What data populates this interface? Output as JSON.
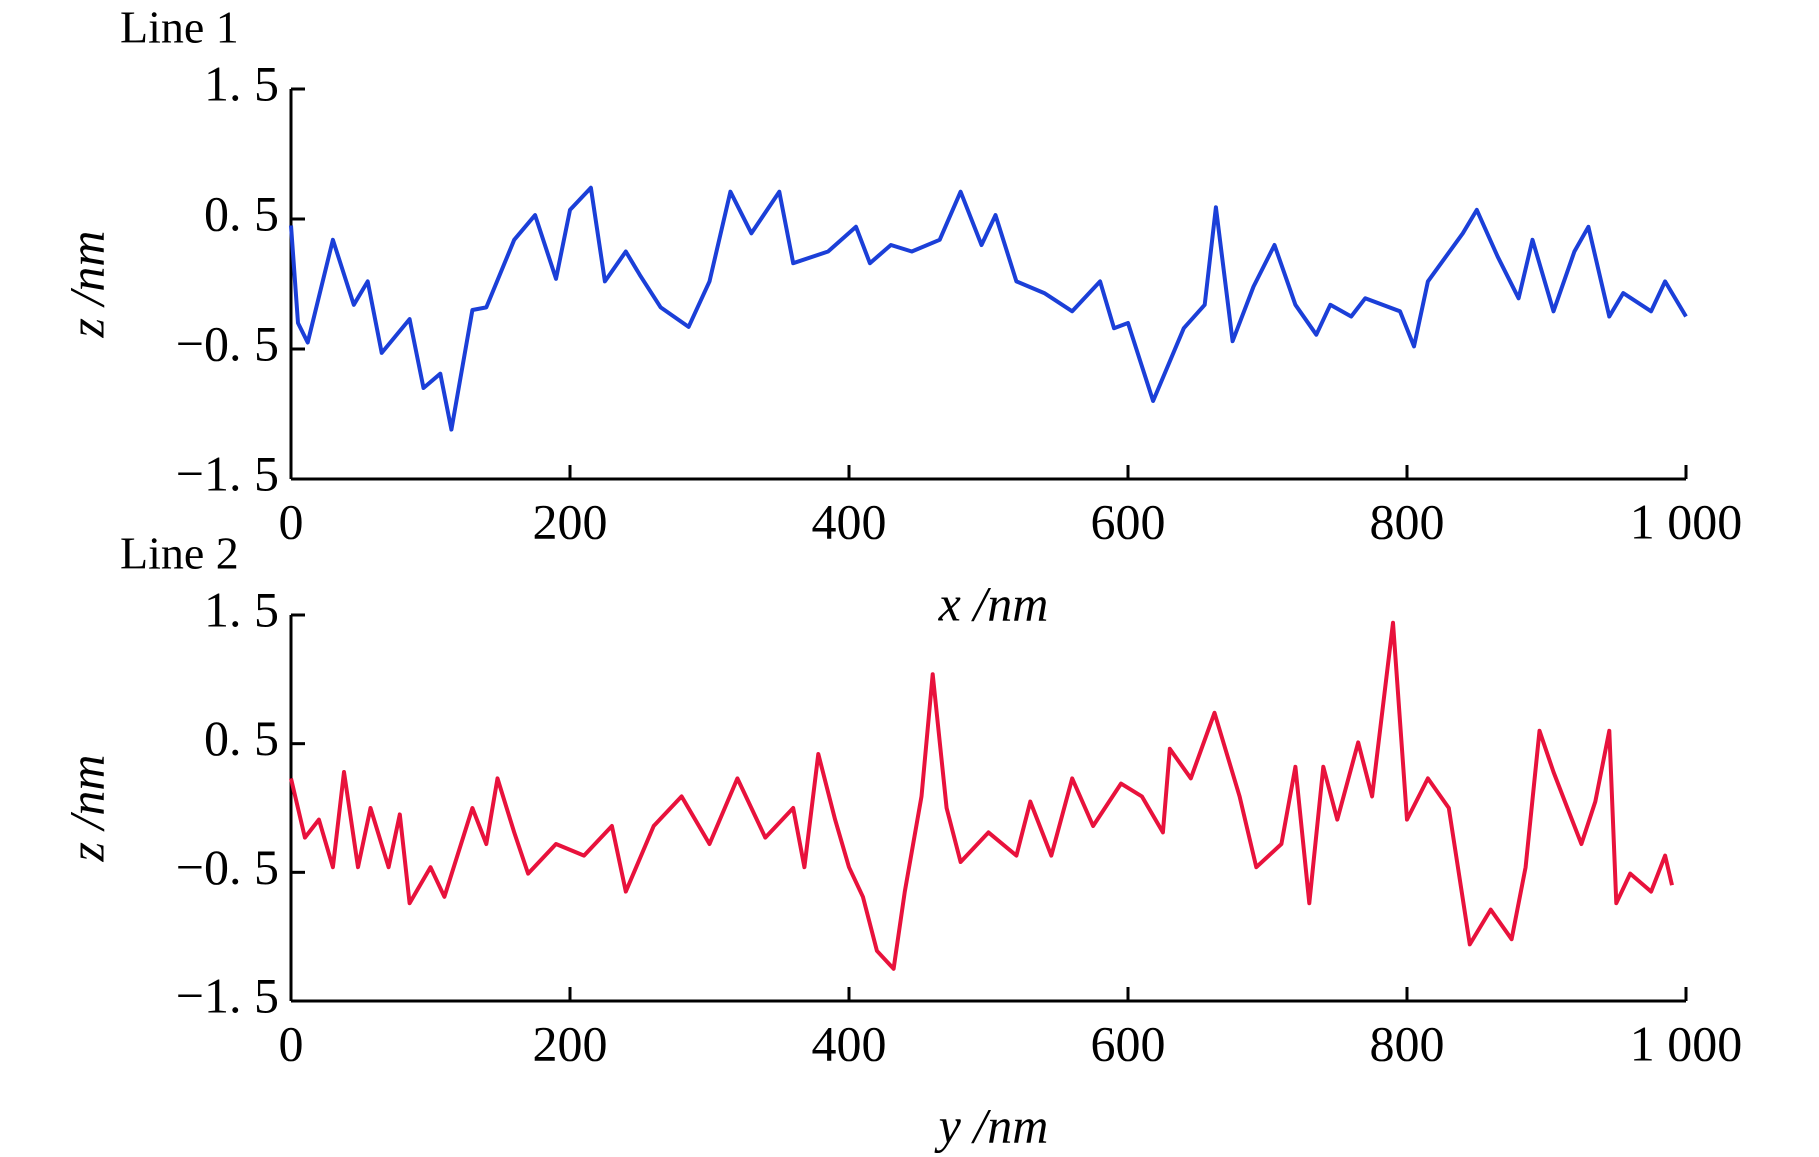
{
  "chart_data": [
    {
      "type": "line",
      "title": "Line 1",
      "xlabel": "x /nm",
      "ylabel": "z /nm",
      "color": "#1b3fd8",
      "x": [
        0,
        5,
        12,
        30,
        45,
        55,
        65,
        85,
        95,
        107,
        115,
        130,
        140,
        160,
        175,
        190,
        200,
        215,
        225,
        240,
        250,
        265,
        285,
        300,
        315,
        330,
        350,
        360,
        385,
        405,
        415,
        430,
        445,
        465,
        480,
        495,
        505,
        520,
        540,
        560,
        580,
        590,
        600,
        618,
        640,
        655,
        663,
        675,
        690,
        705,
        720,
        735,
        745,
        760,
        770,
        795,
        805,
        815,
        840,
        850,
        865,
        880,
        890,
        905,
        920,
        930,
        945,
        955,
        975,
        985,
        1000
      ],
      "values": [
        0.45,
        -0.3,
        -0.45,
        0.34,
        -0.16,
        0.02,
        -0.53,
        -0.27,
        -0.8,
        -0.69,
        -1.12,
        -0.2,
        -0.18,
        0.34,
        0.53,
        0.04,
        0.57,
        0.74,
        0.02,
        0.25,
        0.07,
        -0.18,
        -0.33,
        0.02,
        0.71,
        0.39,
        0.71,
        0.16,
        0.25,
        0.44,
        0.16,
        0.3,
        0.25,
        0.34,
        0.71,
        0.3,
        0.53,
        0.02,
        -0.07,
        -0.21,
        0.02,
        -0.34,
        -0.3,
        -0.9,
        -0.34,
        -0.16,
        0.59,
        -0.44,
        -0.02,
        0.3,
        -0.16,
        -0.39,
        -0.16,
        -0.25,
        -0.11,
        -0.21,
        -0.48,
        0.02,
        0.39,
        0.57,
        0.21,
        -0.11,
        0.34,
        -0.21,
        0.25,
        0.44,
        -0.25,
        -0.07,
        -0.21,
        0.02,
        -0.25
      ],
      "xlim": [
        0,
        1000
      ],
      "ylim": [
        -1.5,
        1.5
      ],
      "xticks": [
        0,
        200,
        400,
        600,
        800,
        {
          "value": 1000,
          "label": "1 000"
        }
      ],
      "yticks": [
        {
          "value": 1.5,
          "label": "1. 5"
        },
        {
          "value": 0.5,
          "label": "0. 5"
        },
        {
          "value": -0.5,
          "label": "−0. 5"
        },
        {
          "value": -1.5,
          "label": "−1. 5"
        }
      ]
    },
    {
      "type": "line",
      "title": "Line 2",
      "xlabel": "y /nm",
      "ylabel": "z /nm",
      "color": "#e8123c",
      "x": [
        0,
        10,
        20,
        30,
        38,
        48,
        57,
        70,
        78,
        85,
        100,
        110,
        130,
        140,
        148,
        160,
        170,
        190,
        210,
        230,
        240,
        260,
        280,
        300,
        320,
        340,
        360,
        368,
        378,
        390,
        400,
        410,
        420,
        432,
        440,
        452,
        460,
        470,
        480,
        500,
        520,
        530,
        545,
        560,
        575,
        595,
        610,
        625,
        630,
        645,
        662,
        680,
        692,
        710,
        720,
        730,
        740,
        750,
        765,
        775,
        790,
        800,
        815,
        830,
        845,
        860,
        875,
        885,
        895,
        905,
        915,
        925,
        935,
        945,
        950,
        960,
        975,
        985,
        990
      ],
      "values": [
        0.23,
        -0.23,
        -0.09,
        -0.46,
        0.28,
        -0.46,
        0,
        -0.46,
        -0.05,
        -0.74,
        -0.46,
        -0.69,
        0,
        -0.28,
        0.23,
        -0.19,
        -0.51,
        -0.28,
        -0.37,
        -0.14,
        -0.65,
        -0.14,
        0.09,
        -0.28,
        0.23,
        -0.23,
        0,
        -0.46,
        0.42,
        -0.09,
        -0.46,
        -0.69,
        -1.11,
        -1.25,
        -0.65,
        0.09,
        1.04,
        0,
        -0.42,
        -0.19,
        -0.37,
        0.05,
        -0.37,
        0.23,
        -0.14,
        0.19,
        0.09,
        -0.19,
        0.46,
        0.23,
        0.74,
        0.09,
        -0.46,
        -0.28,
        0.32,
        -0.74,
        0.32,
        -0.09,
        0.51,
        0.09,
        1.44,
        -0.09,
        0.23,
        0,
        -1.06,
        -0.79,
        -1.02,
        -0.46,
        0.6,
        0.28,
        0,
        -0.28,
        0.05,
        0.6,
        -0.74,
        -0.51,
        -0.65,
        -0.37,
        -0.6
      ],
      "xlim": [
        0,
        1000
      ],
      "ylim": [
        -1.5,
        1.5
      ],
      "xticks": [
        0,
        200,
        400,
        600,
        800,
        {
          "value": 1000,
          "label": "1 000"
        }
      ],
      "yticks": [
        {
          "value": 1.5,
          "label": "1. 5"
        },
        {
          "value": 0.5,
          "label": "0. 5"
        },
        {
          "value": -0.5,
          "label": "−0. 5"
        },
        {
          "value": -1.5,
          "label": "−1. 5"
        }
      ]
    }
  ]
}
